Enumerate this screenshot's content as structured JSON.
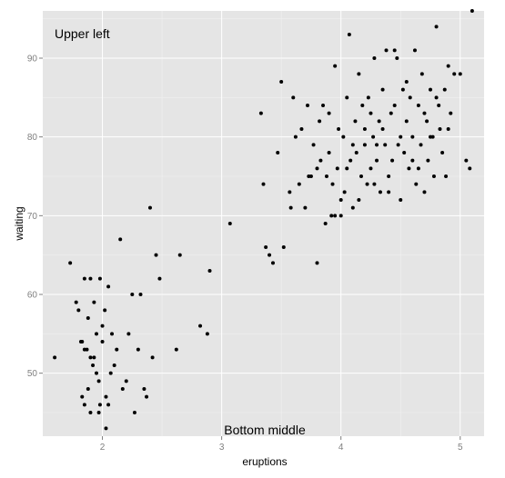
{
  "chart_data": {
    "type": "scatter",
    "title": "",
    "xlabel": "eruptions",
    "ylabel": "waiting",
    "xlim": [
      1.5,
      5.2
    ],
    "ylim": [
      42,
      96
    ],
    "x_ticks": [
      2,
      3,
      4,
      5
    ],
    "y_ticks": [
      50,
      60,
      70,
      80,
      90
    ],
    "x_tick_labels": [
      "2",
      "3",
      "4",
      "5"
    ],
    "y_tick_labels": [
      "50",
      "60",
      "70",
      "80",
      "90"
    ],
    "grid": true,
    "legend": "none",
    "annotations": [
      {
        "text": "Upper left",
        "position": "top-left"
      },
      {
        "text": "Bottom middle",
        "position": "bottom-center"
      }
    ],
    "colors": {
      "panel": "#e5e5e5",
      "grid_major": "#ffffff",
      "grid_minor": "#f2f2f2",
      "point": "#000000"
    },
    "points": [
      [
        1.6,
        52
      ],
      [
        1.73,
        64
      ],
      [
        1.78,
        59
      ],
      [
        1.8,
        58
      ],
      [
        1.82,
        54
      ],
      [
        1.83,
        54
      ],
      [
        1.85,
        46
      ],
      [
        1.87,
        53
      ],
      [
        1.88,
        48
      ],
      [
        1.9,
        52
      ],
      [
        1.92,
        51
      ],
      [
        1.93,
        59
      ],
      [
        1.95,
        55
      ],
      [
        1.97,
        49
      ],
      [
        1.98,
        46
      ],
      [
        2.0,
        56
      ],
      [
        2.02,
        58
      ],
      [
        2.03,
        47
      ],
      [
        2.05,
        61
      ],
      [
        2.07,
        50
      ],
      [
        1.83,
        47
      ],
      [
        1.85,
        53
      ],
      [
        1.88,
        57
      ],
      [
        1.9,
        62
      ],
      [
        1.95,
        50
      ],
      [
        1.97,
        45
      ],
      [
        2.0,
        54
      ],
      [
        2.1,
        51
      ],
      [
        2.15,
        67
      ],
      [
        2.2,
        49
      ],
      [
        2.22,
        55
      ],
      [
        2.25,
        60
      ],
      [
        2.27,
        45
      ],
      [
        2.3,
        53
      ],
      [
        2.32,
        60
      ],
      [
        2.35,
        48
      ],
      [
        2.37,
        47
      ],
      [
        2.4,
        71
      ],
      [
        2.42,
        52
      ],
      [
        2.45,
        65
      ],
      [
        2.48,
        62
      ],
      [
        1.85,
        62
      ],
      [
        1.9,
        45
      ],
      [
        1.93,
        52
      ],
      [
        2.05,
        46
      ],
      [
        2.08,
        55
      ],
      [
        2.12,
        53
      ],
      [
        2.17,
        48
      ],
      [
        2.03,
        43
      ],
      [
        1.98,
        62
      ],
      [
        2.62,
        53
      ],
      [
        2.65,
        65
      ],
      [
        2.82,
        56
      ],
      [
        2.88,
        55
      ],
      [
        2.9,
        63
      ],
      [
        3.07,
        69
      ],
      [
        3.33,
        83
      ],
      [
        3.35,
        74
      ],
      [
        3.37,
        66
      ],
      [
        3.4,
        65
      ],
      [
        3.43,
        64
      ],
      [
        3.47,
        78
      ],
      [
        3.5,
        87
      ],
      [
        3.52,
        66
      ],
      [
        3.57,
        73
      ],
      [
        3.58,
        71
      ],
      [
        3.6,
        85
      ],
      [
        3.62,
        80
      ],
      [
        3.65,
        74
      ],
      [
        3.67,
        81
      ],
      [
        3.7,
        71
      ],
      [
        3.72,
        84
      ],
      [
        3.75,
        75
      ],
      [
        3.77,
        79
      ],
      [
        3.8,
        64
      ],
      [
        3.82,
        82
      ],
      [
        3.83,
        77
      ],
      [
        3.85,
        84
      ],
      [
        3.87,
        69
      ],
      [
        3.88,
        75
      ],
      [
        3.9,
        78
      ],
      [
        3.92,
        70
      ],
      [
        3.93,
        74
      ],
      [
        3.95,
        89
      ],
      [
        3.97,
        76
      ],
      [
        3.98,
        81
      ],
      [
        4.0,
        70
      ],
      [
        4.02,
        80
      ],
      [
        4.03,
        73
      ],
      [
        4.05,
        85
      ],
      [
        4.07,
        93
      ],
      [
        4.08,
        77
      ],
      [
        4.1,
        71
      ],
      [
        4.12,
        82
      ],
      [
        4.13,
        78
      ],
      [
        4.15,
        88
      ],
      [
        4.17,
        75
      ],
      [
        4.18,
        84
      ],
      [
        4.2,
        79
      ],
      [
        4.22,
        74
      ],
      [
        4.23,
        85
      ],
      [
        4.25,
        76
      ],
      [
        4.27,
        80
      ],
      [
        4.28,
        90
      ],
      [
        4.3,
        77
      ],
      [
        4.32,
        82
      ],
      [
        4.33,
        73
      ],
      [
        4.35,
        86
      ],
      [
        4.37,
        79
      ],
      [
        4.38,
        91
      ],
      [
        4.4,
        75
      ],
      [
        4.42,
        83
      ],
      [
        4.43,
        77
      ],
      [
        4.45,
        84
      ],
      [
        4.47,
        90
      ],
      [
        4.48,
        79
      ],
      [
        4.5,
        72
      ],
      [
        4.52,
        86
      ],
      [
        4.53,
        78
      ],
      [
        4.55,
        82
      ],
      [
        4.57,
        76
      ],
      [
        4.58,
        85
      ],
      [
        4.6,
        80
      ],
      [
        4.62,
        91
      ],
      [
        4.63,
        74
      ],
      [
        4.65,
        84
      ],
      [
        4.67,
        79
      ],
      [
        4.68,
        88
      ],
      [
        4.7,
        73
      ],
      [
        4.72,
        82
      ],
      [
        4.73,
        77
      ],
      [
        4.75,
        86
      ],
      [
        4.77,
        80
      ],
      [
        4.78,
        75
      ],
      [
        4.8,
        94
      ],
      [
        4.82,
        84
      ],
      [
        4.83,
        81
      ],
      [
        4.85,
        78
      ],
      [
        4.87,
        86
      ],
      [
        4.88,
        75
      ],
      [
        4.9,
        89
      ],
      [
        4.92,
        83
      ],
      [
        4.95,
        88
      ],
      [
        5.0,
        88
      ],
      [
        5.05,
        77
      ],
      [
        5.08,
        76
      ],
      [
        5.1,
        96
      ],
      [
        3.9,
        83
      ],
      [
        4.0,
        72
      ],
      [
        4.1,
        79
      ],
      [
        4.2,
        81
      ],
      [
        4.3,
        79
      ],
      [
        4.4,
        73
      ],
      [
        4.5,
        80
      ],
      [
        4.6,
        77
      ],
      [
        4.7,
        83
      ],
      [
        4.8,
        85
      ],
      [
        3.8,
        76
      ],
      [
        4.45,
        91
      ],
      [
        4.55,
        87
      ],
      [
        3.73,
        75
      ],
      [
        3.95,
        70
      ],
      [
        4.15,
        72
      ],
      [
        4.25,
        83
      ],
      [
        4.35,
        81
      ],
      [
        4.65,
        76
      ],
      [
        4.75,
        80
      ],
      [
        4.9,
        81
      ],
      [
        4.05,
        76
      ],
      [
        4.28,
        74
      ]
    ]
  }
}
